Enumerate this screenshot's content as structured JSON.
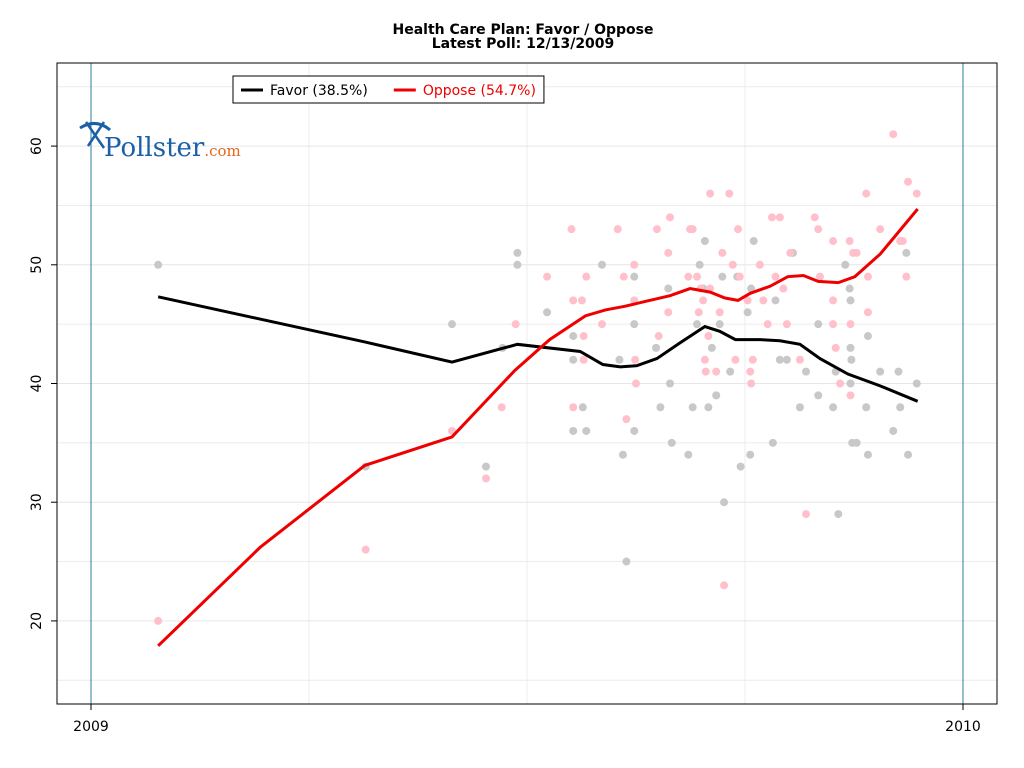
{
  "chart_data": {
    "type": "scatter",
    "title": "Health Care Plan: Favor / Oppose",
    "subtitle": "Latest Poll: 12/13/2009",
    "logo": {
      "name": "Pollster",
      "suffix": ".com"
    },
    "xlim": [
      2008.961,
      2010.039
    ],
    "xticks": [
      2009,
      2010
    ],
    "minor_xticks": [
      2009.25,
      2009.5,
      2009.75
    ],
    "ylim": [
      13,
      67
    ],
    "yticks": [
      20,
      30,
      40,
      50,
      60
    ],
    "minor_yticks": [
      15,
      25,
      35,
      45,
      55,
      65
    ],
    "grid": true,
    "legend": "top",
    "series": [
      {
        "name": "Favor (38.5%)",
        "color": "#000000",
        "point_color": "#c8c8c8",
        "x": [
          2009.077,
          2009.314,
          2009.414,
          2009.489,
          2009.561,
          2009.587,
          2009.607,
          2009.626,
          2009.649,
          2009.675,
          2009.704,
          2009.721,
          2009.739,
          2009.75,
          2009.767,
          2009.79,
          2009.813,
          2009.836,
          2009.868,
          2009.905,
          2009.948
        ],
        "values": [
          47.3,
          43.5,
          41.8,
          43.3,
          42.7,
          41.6,
          41.4,
          41.5,
          42.1,
          43.4,
          44.8,
          44.4,
          43.7,
          43.7,
          43.7,
          43.6,
          43.3,
          42.1,
          40.8,
          39.8,
          38.5
        ],
        "points": {
          "x": [
            2009.077,
            2009.315,
            2009.414,
            2009.453,
            2009.472,
            2009.489,
            2009.489,
            2009.523,
            2009.553,
            2009.553,
            2009.553,
            2009.564,
            2009.568,
            2009.586,
            2009.606,
            2009.61,
            2009.614,
            2009.623,
            2009.623,
            2009.623,
            2009.648,
            2009.653,
            2009.662,
            2009.664,
            2009.666,
            2009.685,
            2009.69,
            2009.695,
            2009.698,
            2009.704,
            2009.702,
            2009.708,
            2009.712,
            2009.717,
            2009.721,
            2009.724,
            2009.726,
            2009.733,
            2009.741,
            2009.745,
            2009.753,
            2009.756,
            2009.76,
            2009.757,
            2009.782,
            2009.785,
            2009.79,
            2009.798,
            2009.805,
            2009.813,
            2009.82,
            2009.834,
            2009.834,
            2009.851,
            2009.854,
            2009.857,
            2009.865,
            2009.87,
            2009.871,
            2009.871,
            2009.871,
            2009.872,
            2009.873,
            2009.878,
            2009.889,
            2009.891,
            2009.891,
            2009.905,
            2009.92,
            2009.926,
            2009.928,
            2009.935,
            2009.937,
            2009.947
          ],
          "values": [
            50,
            33,
            45,
            33,
            43,
            51,
            50,
            46,
            44,
            42,
            36,
            38,
            36,
            50,
            42,
            34,
            25,
            49,
            45,
            36,
            43,
            38,
            48,
            40,
            35,
            34,
            38,
            45,
            50,
            52,
            48,
            38,
            43,
            39,
            45,
            49,
            30,
            41,
            49,
            33,
            46,
            34,
            52,
            48,
            35,
            47,
            42,
            42,
            51,
            38,
            41,
            39,
            45,
            38,
            41,
            29,
            50,
            48,
            47,
            40,
            43,
            42,
            35,
            35,
            38,
            44,
            34,
            41,
            36,
            41,
            38,
            51,
            34,
            40
          ]
        }
      },
      {
        "name": "Oppose (54.7%)",
        "color": "#ee0000",
        "point_color": "#ffc0cb",
        "x": [
          2009.077,
          2009.194,
          2009.314,
          2009.414,
          2009.486,
          2009.526,
          2009.567,
          2009.59,
          2009.612,
          2009.635,
          2009.664,
          2009.687,
          2009.71,
          2009.727,
          2009.742,
          2009.756,
          2009.779,
          2009.799,
          2009.817,
          2009.834,
          2009.857,
          2009.876,
          2009.905,
          2009.948
        ],
        "values": [
          17.9,
          26.2,
          33.1,
          35.5,
          41.1,
          43.7,
          45.7,
          46.2,
          46.5,
          46.9,
          47.4,
          48.0,
          47.7,
          47.2,
          47.0,
          47.6,
          48.2,
          49.0,
          49.1,
          48.6,
          48.5,
          49.0,
          50.9,
          54.7
        ],
        "points": {
          "x": [
            2009.077,
            2009.315,
            2009.414,
            2009.453,
            2009.471,
            2009.487,
            2009.523,
            2009.551,
            2009.553,
            2009.553,
            2009.563,
            2009.568,
            2009.565,
            2009.565,
            2009.586,
            2009.604,
            2009.611,
            2009.614,
            2009.623,
            2009.623,
            2009.624,
            2009.625,
            2009.649,
            2009.651,
            2009.664,
            2009.662,
            2009.662,
            2009.685,
            2009.687,
            2009.69,
            2009.695,
            2009.697,
            2009.699,
            2009.702,
            2009.704,
            2009.705,
            2009.708,
            2009.71,
            2009.71,
            2009.717,
            2009.721,
            2009.724,
            2009.726,
            2009.732,
            2009.736,
            2009.739,
            2009.742,
            2009.744,
            2009.753,
            2009.756,
            2009.757,
            2009.759,
            2009.767,
            2009.771,
            2009.776,
            2009.781,
            2009.785,
            2009.79,
            2009.794,
            2009.798,
            2009.802,
            2009.813,
            2009.82,
            2009.83,
            2009.834,
            2009.836,
            2009.851,
            2009.851,
            2009.851,
            2009.854,
            2009.859,
            2009.87,
            2009.871,
            2009.871,
            2009.874,
            2009.878,
            2009.889,
            2009.891,
            2009.891,
            2009.905,
            2009.92,
            2009.928,
            2009.931,
            2009.935,
            2009.937,
            2009.947
          ],
          "values": [
            20,
            26,
            36,
            32,
            38,
            45,
            49,
            53,
            47,
            38,
            47,
            49,
            44,
            42,
            45,
            53,
            49,
            37,
            50,
            47,
            42,
            40,
            53,
            44,
            54,
            51,
            46,
            49,
            53,
            53,
            49,
            46,
            48,
            47,
            42,
            41,
            44,
            56,
            48,
            41,
            46,
            51,
            23,
            56,
            50,
            42,
            53,
            49,
            47,
            41,
            40,
            42,
            50,
            47,
            45,
            54,
            49,
            54,
            48,
            45,
            51,
            42,
            29,
            54,
            53,
            49,
            52,
            47,
            45,
            43,
            40,
            52,
            45,
            39,
            51,
            51,
            56,
            46,
            49,
            53,
            61,
            52,
            52,
            49,
            57,
            56
          ]
        }
      }
    ]
  }
}
